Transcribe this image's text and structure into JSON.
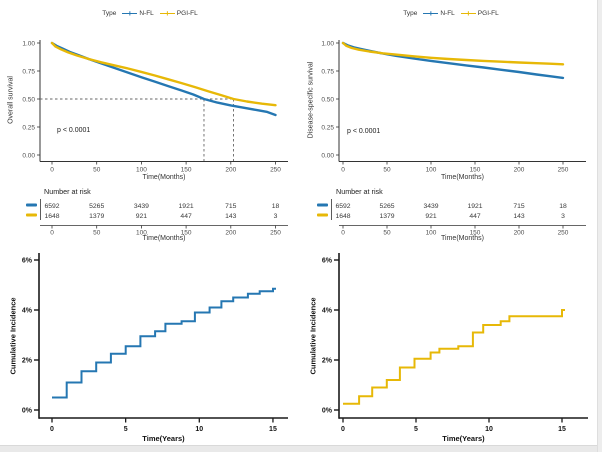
{
  "colors": {
    "nfl": "#2577b2",
    "pgifl": "#e7b807",
    "axis": "#333333",
    "tick_text": "#4d4d4d",
    "dashed": "#666666"
  },
  "legend": {
    "title": "Type",
    "items": [
      {
        "label": "N-FL",
        "color": "#2577b2"
      },
      {
        "label": "PGI-FL",
        "color": "#e7b807"
      }
    ]
  },
  "panels": {
    "os": {
      "ylabel": "Overall survival",
      "xlabel": "Time(Months)",
      "pvalue": "p < 0.0001"
    },
    "dss": {
      "ylabel": "Disease-specific survival",
      "xlabel": "Time(Months)",
      "pvalue": "p < 0.0001"
    },
    "ci_nfl": {
      "ylabel": "Cumulative Incidence",
      "xlabel": "Time(Years)"
    },
    "ci_pgifl": {
      "ylabel": "Cumulative Incidence",
      "xlabel": "Time(Years)"
    }
  },
  "risk_table": {
    "title": "Number at risk",
    "xlabel": "Time(Months)",
    "times": [
      0,
      50,
      100,
      150,
      200,
      250
    ],
    "rows": [
      {
        "series": "N-FL",
        "color": "#2577b2",
        "values": [
          "6592",
          "5265",
          "3439",
          "1921",
          "715",
          "18"
        ]
      },
      {
        "series": "PGI-FL",
        "color": "#e7b807",
        "values": [
          "1648",
          "1379",
          "921",
          "447",
          "143",
          "3"
        ]
      }
    ]
  },
  "chart_data": [
    {
      "type": "line",
      "title": "Kaplan-Meier overall survival",
      "xlabel": "Time(Months)",
      "ylabel": "Overall survival",
      "xlim": [
        0,
        250
      ],
      "ylim": [
        0.0,
        1.0
      ],
      "xticks": [
        0,
        50,
        100,
        150,
        200,
        250
      ],
      "xtick_labels": [
        "0",
        "50",
        "100",
        "150",
        "200",
        "250"
      ],
      "ytick_values": [
        1.0,
        0.75,
        0.5,
        0.25,
        0.0
      ],
      "ytick_labels": [
        "1.00",
        "0.75",
        "0.50",
        "0.25",
        "0.00"
      ],
      "pvalue": "p < 0.0001",
      "legend_position": "top",
      "grid": false,
      "median_months": [
        170,
        203
      ],
      "series": [
        {
          "name": "N-FL",
          "color": "#2577b2",
          "points": [
            [
              0,
              1.0
            ],
            [
              5,
              0.975
            ],
            [
              12,
              0.95
            ],
            [
              20,
              0.92
            ],
            [
              30,
              0.89
            ],
            [
              41,
              0.857
            ],
            [
              55,
              0.818
            ],
            [
              70,
              0.777
            ],
            [
              85,
              0.736
            ],
            [
              100,
              0.695
            ],
            [
              115,
              0.655
            ],
            [
              130,
              0.615
            ],
            [
              145,
              0.576
            ],
            [
              158,
              0.54
            ],
            [
              170,
              0.5
            ],
            [
              185,
              0.468
            ],
            [
              200,
              0.443
            ],
            [
              215,
              0.421
            ],
            [
              230,
              0.4
            ],
            [
              240,
              0.386
            ],
            [
              250,
              0.357
            ]
          ]
        },
        {
          "name": "PGI-FL",
          "color": "#e7b807",
          "points": [
            [
              0,
              1.0
            ],
            [
              4,
              0.968
            ],
            [
              10,
              0.944
            ],
            [
              18,
              0.916
            ],
            [
              28,
              0.888
            ],
            [
              41,
              0.857
            ],
            [
              55,
              0.828
            ],
            [
              70,
              0.8
            ],
            [
              85,
              0.772
            ],
            [
              100,
              0.742
            ],
            [
              115,
              0.71
            ],
            [
              130,
              0.676
            ],
            [
              145,
              0.642
            ],
            [
              160,
              0.606
            ],
            [
              175,
              0.568
            ],
            [
              190,
              0.532
            ],
            [
              203,
              0.5
            ],
            [
              218,
              0.478
            ],
            [
              235,
              0.458
            ],
            [
              250,
              0.445
            ]
          ]
        }
      ]
    },
    {
      "type": "line",
      "title": "Kaplan-Meier disease-specific survival",
      "xlabel": "Time(Months)",
      "ylabel": "Disease-specific survival",
      "xlim": [
        0,
        250
      ],
      "ylim": [
        0.0,
        1.0
      ],
      "xticks": [
        0,
        50,
        100,
        150,
        200,
        250
      ],
      "xtick_labels": [
        "0",
        "50",
        "100",
        "150",
        "200",
        "250"
      ],
      "ytick_values": [
        1.0,
        0.75,
        0.5,
        0.25,
        0.0
      ],
      "ytick_labels": [
        "1.00",
        "0.75",
        "0.50",
        "0.25",
        "0.00"
      ],
      "pvalue": "p < 0.0001",
      "legend_position": "top",
      "grid": false,
      "median_months": null,
      "series": [
        {
          "name": "N-FL",
          "color": "#2577b2",
          "points": [
            [
              0,
              1.0
            ],
            [
              5,
              0.98
            ],
            [
              12,
              0.962
            ],
            [
              20,
              0.947
            ],
            [
              30,
              0.93
            ],
            [
              45,
              0.906
            ],
            [
              60,
              0.886
            ],
            [
              80,
              0.862
            ],
            [
              100,
              0.84
            ],
            [
              120,
              0.82
            ],
            [
              140,
              0.8
            ],
            [
              160,
              0.781
            ],
            [
              180,
              0.761
            ],
            [
              200,
              0.741
            ],
            [
              220,
              0.719
            ],
            [
              235,
              0.704
            ],
            [
              250,
              0.688
            ]
          ]
        },
        {
          "name": "PGI-FL",
          "color": "#e7b807",
          "points": [
            [
              0,
              1.0
            ],
            [
              4,
              0.974
            ],
            [
              10,
              0.955
            ],
            [
              18,
              0.94
            ],
            [
              30,
              0.924
            ],
            [
              45,
              0.908
            ],
            [
              60,
              0.896
            ],
            [
              80,
              0.881
            ],
            [
              100,
              0.868
            ],
            [
              120,
              0.857
            ],
            [
              140,
              0.848
            ],
            [
              160,
              0.84
            ],
            [
              180,
              0.833
            ],
            [
              200,
              0.826
            ],
            [
              220,
              0.82
            ],
            [
              235,
              0.815
            ],
            [
              250,
              0.81
            ]
          ]
        }
      ]
    },
    {
      "type": "line",
      "subtype": "step",
      "title": "Cumulative incidence N-FL",
      "xlabel": "Time(Years)",
      "ylabel": "Cumulative Incidence",
      "xlim": [
        0,
        15
      ],
      "ylim": [
        0,
        6
      ],
      "xticks": [
        0,
        5,
        10,
        15
      ],
      "xtick_labels": [
        "0",
        "5",
        "10",
        "15"
      ],
      "ytick_values": [
        0,
        2,
        4,
        6
      ],
      "ytick_labels": [
        "0%",
        "2%",
        "4%",
        "6%"
      ],
      "grid": false,
      "series": [
        {
          "name": "N-FL",
          "color": "#2577b2",
          "points": [
            [
              0,
              0.5
            ],
            [
              1,
              1.1
            ],
            [
              2,
              1.55
            ],
            [
              3,
              1.9
            ],
            [
              4,
              2.25
            ],
            [
              5,
              2.55
            ],
            [
              6,
              2.95
            ],
            [
              7,
              3.15
            ],
            [
              7.7,
              3.45
            ],
            [
              8.8,
              3.55
            ],
            [
              9.7,
              3.9
            ],
            [
              10.7,
              4.1
            ],
            [
              11.5,
              4.35
            ],
            [
              12.3,
              4.5
            ],
            [
              13.3,
              4.65
            ],
            [
              14.1,
              4.75
            ],
            [
              15,
              4.85
            ]
          ]
        }
      ]
    },
    {
      "type": "line",
      "subtype": "step",
      "title": "Cumulative incidence PGI-FL",
      "xlabel": "Time(Years)",
      "ylabel": "Cumulative Incidence",
      "xlim": [
        0,
        15
      ],
      "ylim": [
        0,
        6
      ],
      "xticks": [
        0,
        5,
        10,
        15
      ],
      "xtick_labels": [
        "0",
        "5",
        "10",
        "15"
      ],
      "ytick_values": [
        0,
        2,
        4,
        6
      ],
      "ytick_labels": [
        "0%",
        "2%",
        "4%",
        "6%"
      ],
      "grid": false,
      "series": [
        {
          "name": "PGI-FL",
          "color": "#e7b807",
          "points": [
            [
              0,
              0.25
            ],
            [
              1.1,
              0.55
            ],
            [
              2,
              0.9
            ],
            [
              3,
              1.2
            ],
            [
              3.9,
              1.7
            ],
            [
              4.9,
              2.05
            ],
            [
              6,
              2.3
            ],
            [
              6.6,
              2.45
            ],
            [
              7.9,
              2.55
            ],
            [
              8.9,
              3.1
            ],
            [
              9.6,
              3.4
            ],
            [
              10.8,
              3.55
            ],
            [
              11.4,
              3.75
            ],
            [
              15,
              4.0
            ]
          ]
        }
      ]
    }
  ]
}
